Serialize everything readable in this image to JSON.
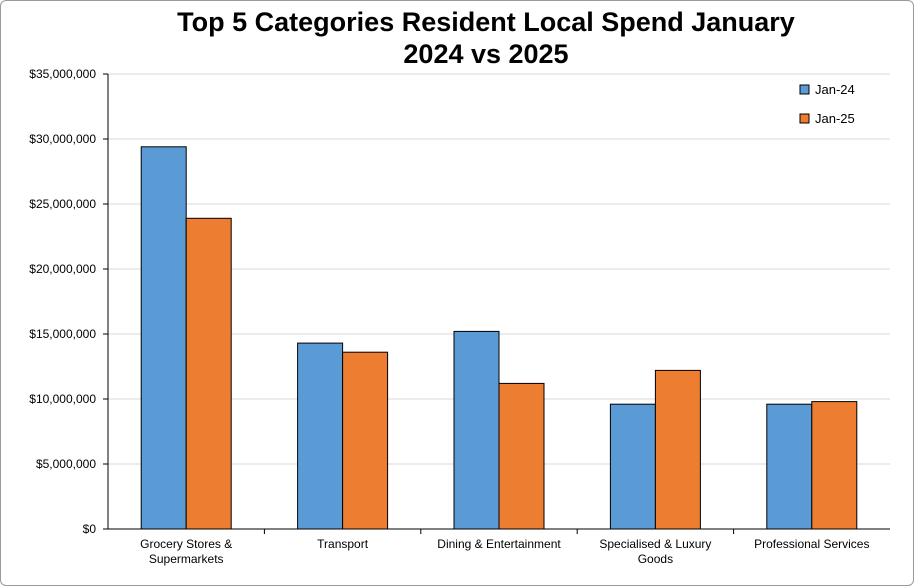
{
  "chart_data": {
    "type": "bar",
    "title_lines": [
      "Top 5 Categories Resident Local Spend January",
      "2024 vs 2025"
    ],
    "categories": [
      [
        "Grocery Stores &",
        "Supermarkets"
      ],
      [
        "Transport"
      ],
      [
        "Dining & Entertainment"
      ],
      [
        "Specialised & Luxury",
        "Goods"
      ],
      [
        "Professional Services"
      ]
    ],
    "series": [
      {
        "name": "Jan-24",
        "color": "#5B9BD5",
        "values": [
          29400000,
          14300000,
          15200000,
          9600000,
          9600000
        ]
      },
      {
        "name": "Jan-25",
        "color": "#ED7D31",
        "values": [
          23900000,
          13600000,
          11200000,
          12200000,
          9800000
        ]
      }
    ],
    "ylim": [
      0,
      35000000
    ],
    "yticks": [
      "$0",
      "$5,000,000",
      "$10,000,000",
      "$15,000,000",
      "$20,000,000",
      "$25,000,000",
      "$30,000,000",
      "$35,000,000"
    ],
    "grid": true,
    "legend_position": "top-right"
  }
}
